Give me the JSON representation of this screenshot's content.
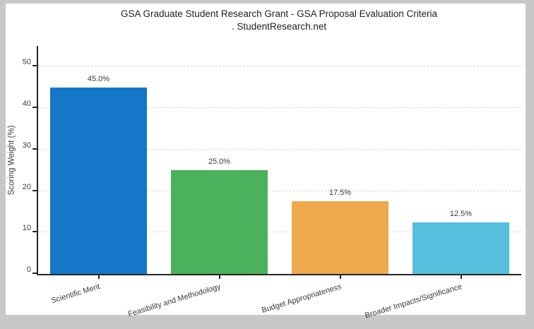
{
  "frame": {
    "outer_background": "#c8c8c8",
    "canvas_background": "#ffffff"
  },
  "chart_data": {
    "type": "bar",
    "title": "GSA Graduate Student Research Grant - GSA Proposal Evaluation Criteria",
    "subtitle": ". StudentResearch.net",
    "categories": [
      "Scientific Merit",
      "Feasibility and Methodology",
      "Budget Appropriateness",
      "Broader Impacts/Significance"
    ],
    "values": [
      45.0,
      25.0,
      17.5,
      12.5
    ],
    "value_labels": [
      "45.0%",
      "25.0%",
      "17.5%",
      "12.5%"
    ],
    "bar_colors": [
      "#1477c8",
      "#4cb15c",
      "#f0a84e",
      "#55bfdd"
    ],
    "xlabel": "",
    "ylabel": "Scoring Weight (%)",
    "ylim": [
      0,
      55
    ],
    "yticks": [
      0,
      10,
      20,
      30,
      40,
      50
    ],
    "grid": "horizontal-dashed",
    "legend": "none",
    "x_tick_label_rotation_deg": -17,
    "axis_color": "#262626",
    "gridline_color": "#d9d9d9",
    "text_color": "#3a3a3a"
  }
}
